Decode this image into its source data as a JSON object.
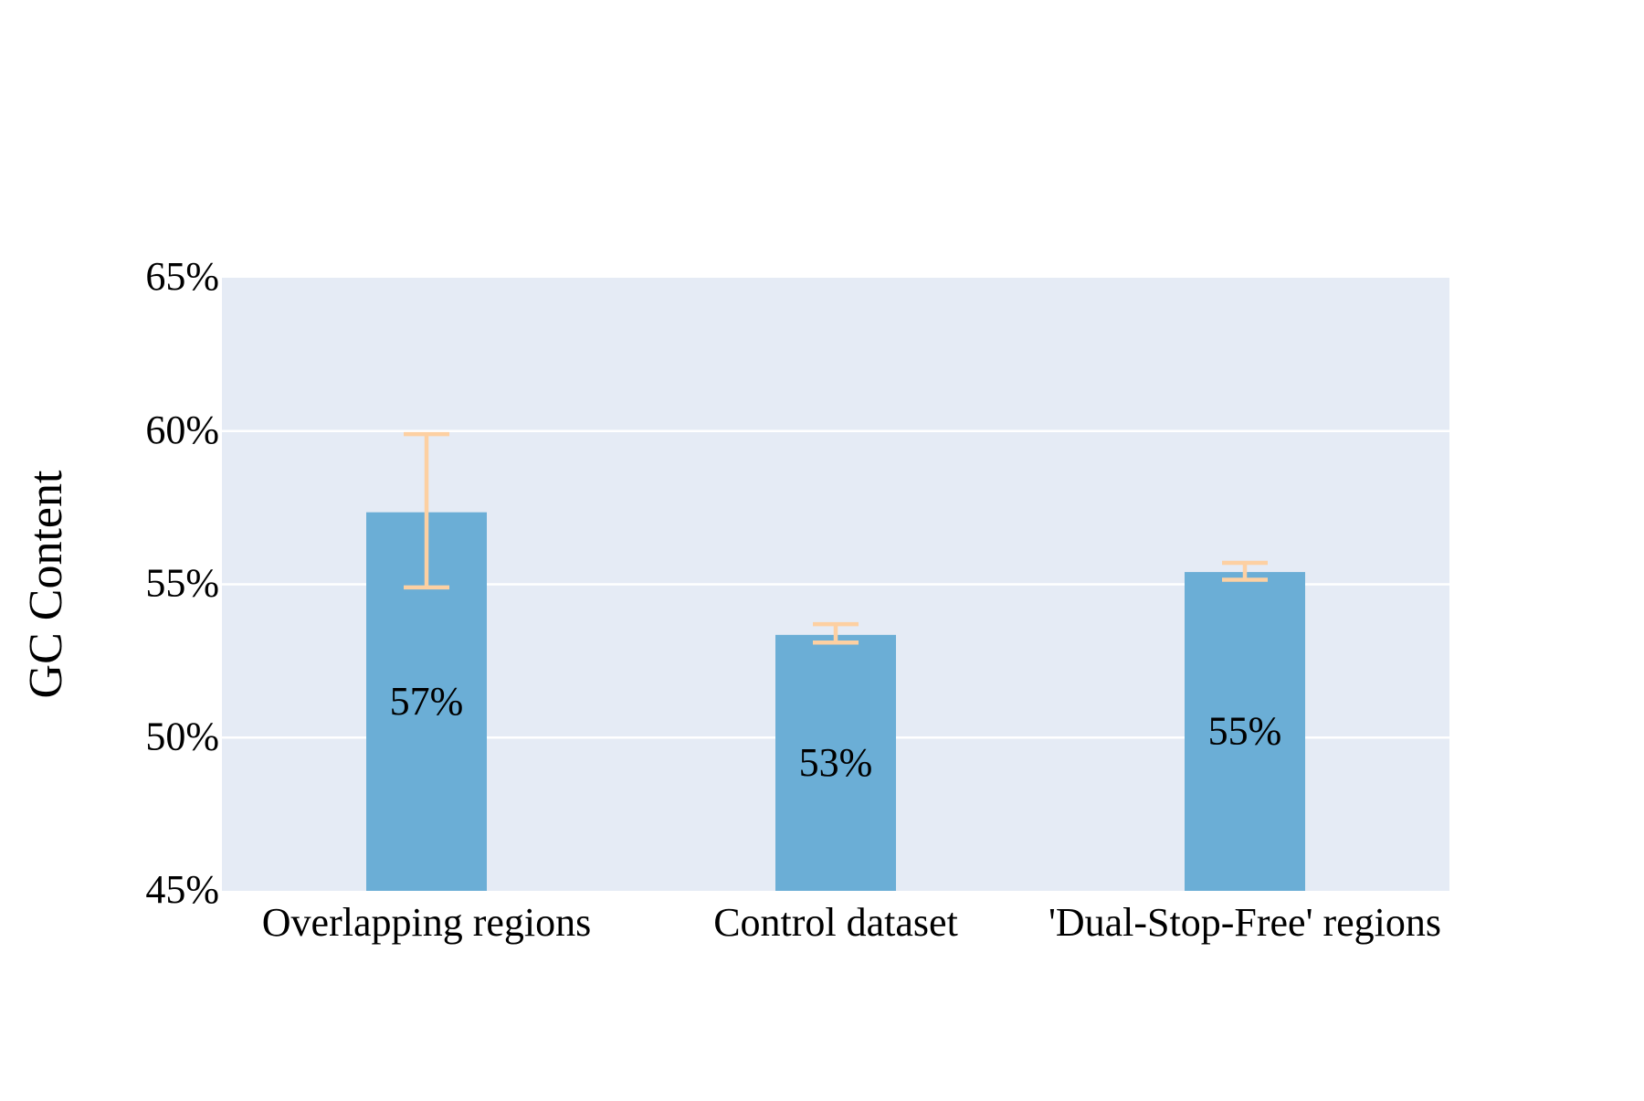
{
  "chart_data": {
    "type": "bar",
    "title": "",
    "xlabel": "",
    "ylabel": "GC Content",
    "categories": [
      "Overlapping regions",
      "Control dataset",
      "'Dual-Stop-Free' regions"
    ],
    "values": [
      57.35,
      53.35,
      55.4
    ],
    "value_labels": [
      "57%",
      "53%",
      "55%"
    ],
    "error_low": [
      54.9,
      53.1,
      55.15
    ],
    "error_high": [
      59.9,
      53.7,
      55.7
    ],
    "ylim": [
      45,
      65
    ],
    "yticks": [
      45,
      50,
      55,
      60,
      65
    ],
    "ytick_labels": [
      "45%",
      "50%",
      "55%",
      "60%",
      "65%"
    ],
    "grid": true,
    "legend": "none",
    "colors": {
      "plot_background": "#e5ebf5",
      "bar": "#6baed6",
      "error_bar": "#fdd0a2",
      "grid": "#ffffff"
    }
  }
}
